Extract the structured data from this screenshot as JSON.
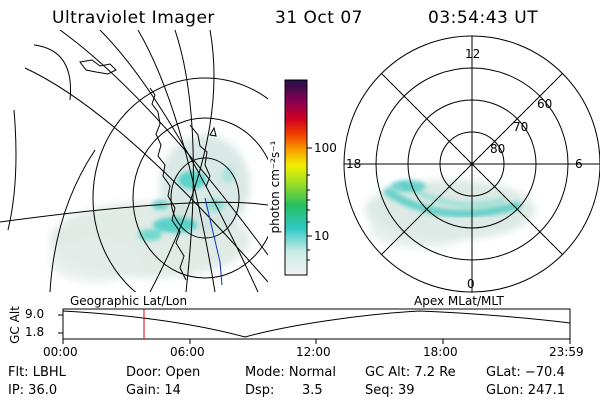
{
  "header": {
    "title": "Ultraviolet Imager",
    "date": "31 Oct 07",
    "time": "03:54:43 UT"
  },
  "colorbar": {
    "unit_label": "photon cm⁻²s⁻¹",
    "ticks": [
      "100",
      "10"
    ]
  },
  "polar_plot": {
    "clock_labels": {
      "top": "12",
      "left": "18",
      "right": "6",
      "bottom": "0"
    },
    "lat_labels": [
      "60",
      "70",
      "80"
    ]
  },
  "map_labels": {
    "geographic": "Geographic Lat/Lon",
    "apex": "Apex MLat/MLT"
  },
  "altitude_strip": {
    "axis_label": "GC Alt",
    "y_ticks": [
      "9.0",
      "1.8"
    ],
    "x_ticks": [
      "00:00",
      "06:00",
      "12:00",
      "18:00",
      "23:59"
    ]
  },
  "status": {
    "filter": "Flt: LBHL",
    "ip": "IP: 36.0",
    "door": "Door: Open",
    "gain": "Gain: 14",
    "mode": "Mode: Normal",
    "dsp_label": "Dsp:",
    "dsp_value": "3.5",
    "gc_alt": "GC Alt: 7.2 Re",
    "seq": "Seq: 39",
    "glat": "GLat: −70.4",
    "glon": "GLon: 247.1"
  },
  "colors": {
    "cursor_line": "#e00000",
    "emission_teal": "#3ec8c0",
    "emission_pale": "#cfe3dc",
    "track_blue": "#1030c0"
  }
}
